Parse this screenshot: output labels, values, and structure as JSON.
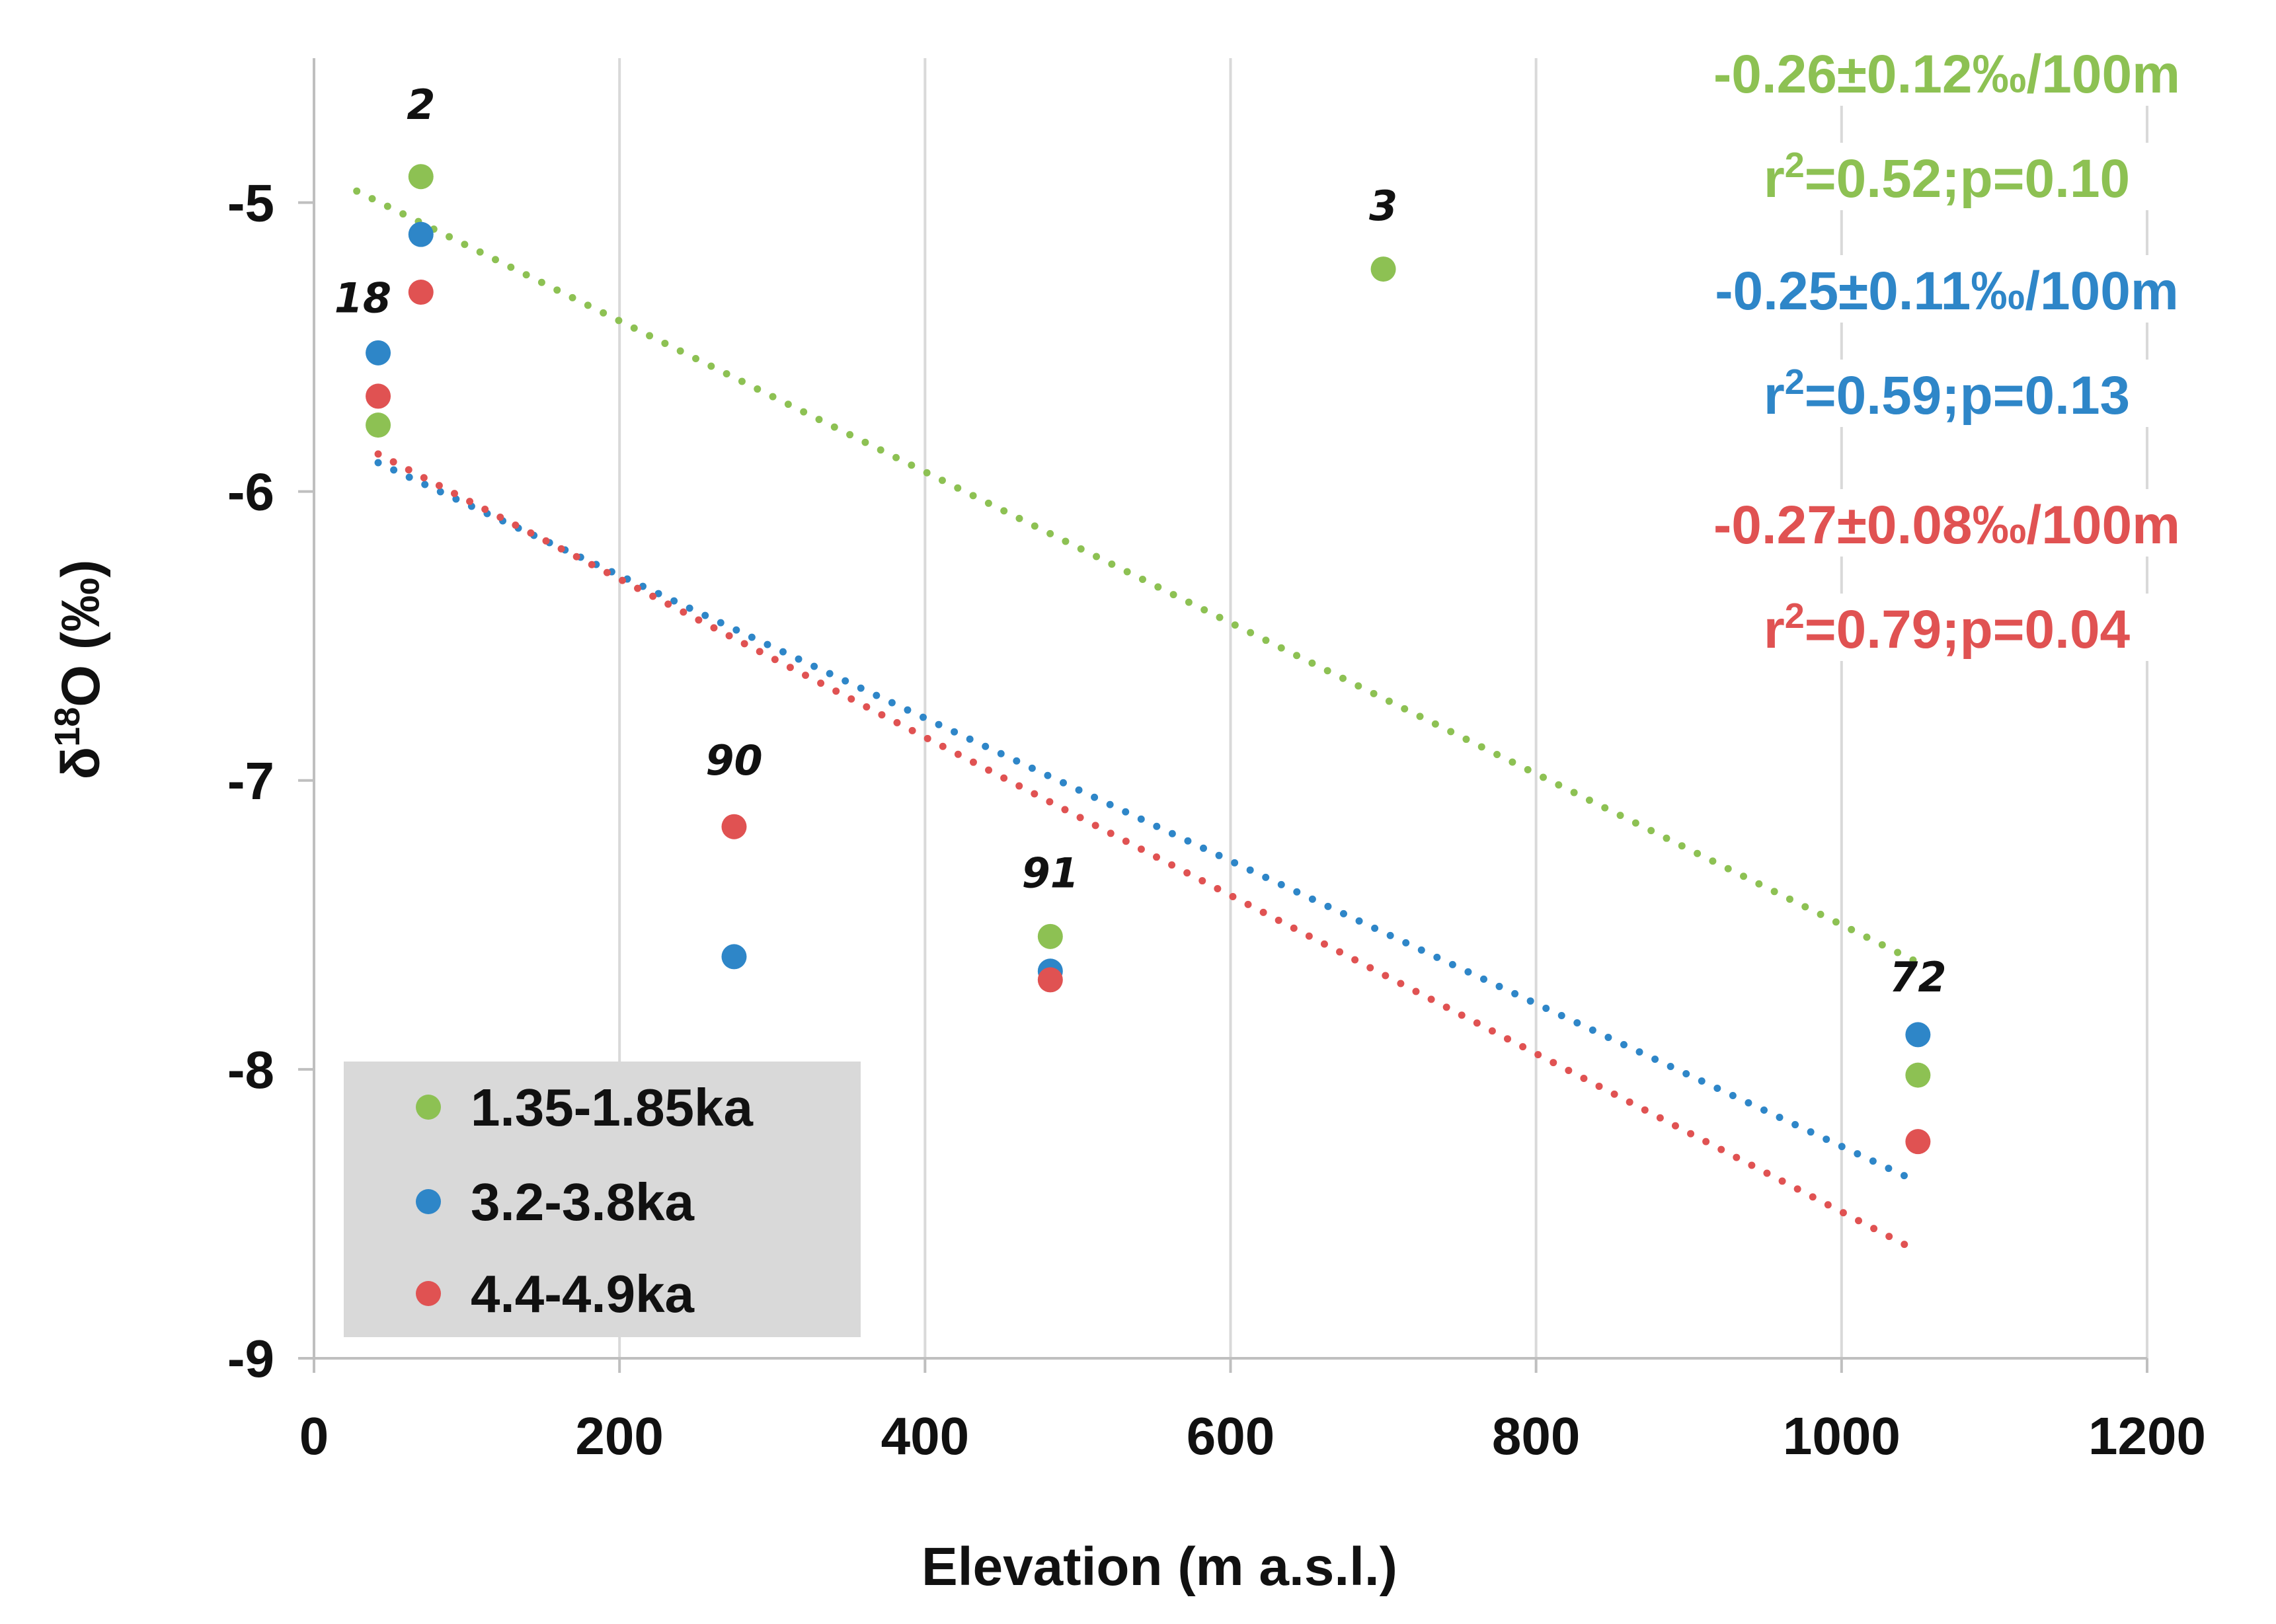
{
  "chart_data": {
    "type": "scatter",
    "xlabel": "Elevation (m a.s.l.)",
    "ylabel": {
      "prefix": "δ",
      "sup": "18",
      "suffix": "O (‰)"
    },
    "xlim": [
      0,
      1200
    ],
    "ylim": [
      -9,
      -4.5
    ],
    "xticks": [
      0,
      200,
      400,
      600,
      800,
      1000,
      1200
    ],
    "yticks": [
      -5,
      -6,
      -7,
      -8,
      -9
    ],
    "grid": "vertical",
    "legend_position": "bottom-left",
    "series": [
      {
        "name": "1.35-1.85ka",
        "color": "#8DC153",
        "points": [
          [
            42,
            -5.77
          ],
          [
            70,
            -4.91
          ],
          [
            700,
            -5.23
          ],
          [
            482,
            -7.54
          ],
          [
            1050,
            -8.02
          ]
        ],
        "trend": {
          "x": [
            28,
            1050
          ],
          "y": [
            -4.96,
            -7.63
          ]
        },
        "annotation": {
          "line1": "-0.26±0.12‰/100m",
          "line2_prefix": "r",
          "line2_sup": "2",
          "line2_suffix": "=0.52;p=0.10"
        }
      },
      {
        "name": "3.2-3.8ka",
        "color": "#2E86C8",
        "points": [
          [
            42,
            -5.52
          ],
          [
            70,
            -5.11
          ],
          [
            275,
            -7.61
          ],
          [
            482,
            -7.66
          ],
          [
            1050,
            -7.88
          ]
        ],
        "trend": {
          "x": [
            42,
            1050
          ],
          "y": [
            -5.9,
            -8.39
          ]
        },
        "annotation": {
          "line1": "-0.25±0.11‰/100m",
          "line2_prefix": "r",
          "line2_sup": "2",
          "line2_suffix": "=0.59;p=0.13"
        }
      },
      {
        "name": "4.4-4.9ka",
        "color": "#E05252",
        "points": [
          [
            42,
            -5.67
          ],
          [
            70,
            -5.31
          ],
          [
            275,
            -7.16
          ],
          [
            482,
            -7.69
          ],
          [
            1050,
            -8.25
          ]
        ],
        "trend": {
          "x": [
            42,
            1050
          ],
          "y": [
            -5.87,
            -8.63
          ]
        },
        "annotation": {
          "line1": "-0.27±0.08‰/100m",
          "line2_prefix": "r",
          "line2_sup": "2",
          "line2_suffix": "=0.79;p=0.04"
        }
      }
    ],
    "point_labels": [
      {
        "text": "2",
        "x": 70,
        "y": -4.71
      },
      {
        "text": "18",
        "x": 32,
        "y": -5.38
      },
      {
        "text": "3",
        "x": 700,
        "y": -5.06
      },
      {
        "text": "90",
        "x": 275,
        "y": -6.98
      },
      {
        "text": "91",
        "x": 482,
        "y": -7.37
      },
      {
        "text": "72",
        "x": 1050,
        "y": -7.73
      }
    ]
  }
}
